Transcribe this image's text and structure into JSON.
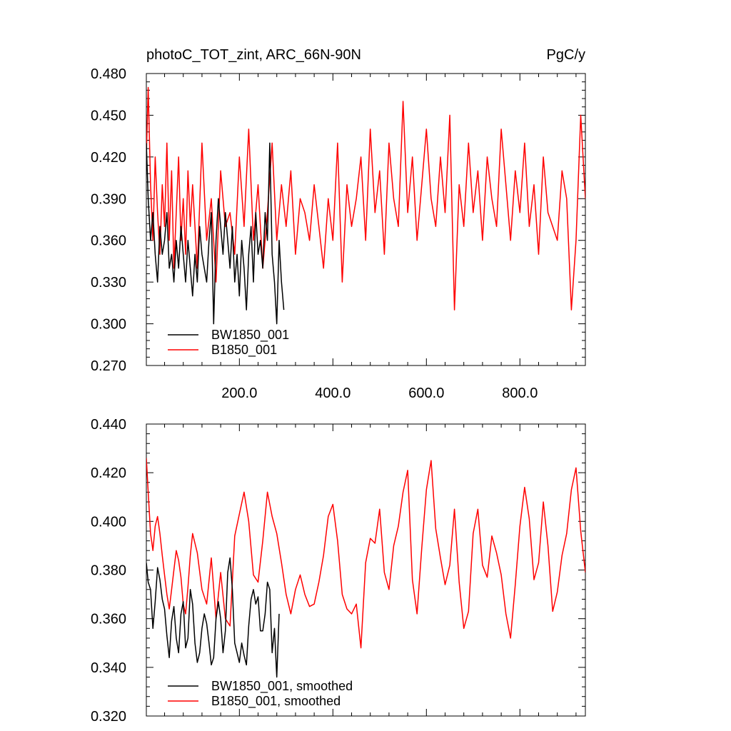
{
  "chart_data": [
    {
      "type": "line",
      "title": "photoC_TOT_zint, ARC_66N-90N",
      "units": "PgC/y",
      "xlabel": "",
      "ylabel": "",
      "xlim": [
        1,
        940
      ],
      "ylim": [
        0.27,
        0.48
      ],
      "xticks": [
        "200.0",
        "400.0",
        "600.0",
        "800.0"
      ],
      "yticks": [
        "0.270",
        "0.300",
        "0.330",
        "0.360",
        "0.390",
        "0.420",
        "0.450",
        "0.480"
      ],
      "legend_placement": "bottom-left",
      "series": [
        {
          "name": "BW1850_001",
          "color": "#000000",
          "x": [
            1,
            5,
            10,
            15,
            20,
            25,
            30,
            35,
            40,
            45,
            50,
            55,
            60,
            65,
            70,
            75,
            80,
            85,
            90,
            95,
            100,
            105,
            110,
            115,
            120,
            125,
            130,
            135,
            140,
            145,
            150,
            155,
            160,
            165,
            170,
            175,
            180,
            185,
            190,
            195,
            200,
            205,
            210,
            215,
            220,
            225,
            230,
            235,
            240,
            245,
            250,
            255,
            260,
            265,
            270,
            275,
            280,
            285,
            290,
            295
          ],
          "values": [
            0.43,
            0.39,
            0.36,
            0.38,
            0.35,
            0.33,
            0.37,
            0.35,
            0.36,
            0.38,
            0.34,
            0.35,
            0.33,
            0.36,
            0.34,
            0.37,
            0.35,
            0.33,
            0.36,
            0.34,
            0.32,
            0.35,
            0.33,
            0.37,
            0.35,
            0.34,
            0.33,
            0.36,
            0.38,
            0.3,
            0.36,
            0.39,
            0.37,
            0.35,
            0.38,
            0.36,
            0.34,
            0.37,
            0.33,
            0.35,
            0.32,
            0.36,
            0.34,
            0.31,
            0.35,
            0.37,
            0.33,
            0.38,
            0.35,
            0.36,
            0.34,
            0.38,
            0.36,
            0.43,
            0.35,
            0.33,
            0.3,
            0.36,
            0.33,
            0.31
          ]
        },
        {
          "name": "B1850_001",
          "color": "#ff0000",
          "x": [
            1,
            5,
            10,
            15,
            20,
            25,
            30,
            35,
            40,
            45,
            50,
            55,
            60,
            65,
            70,
            75,
            80,
            85,
            90,
            95,
            100,
            110,
            120,
            130,
            140,
            150,
            160,
            170,
            180,
            190,
            200,
            210,
            220,
            230,
            240,
            250,
            260,
            270,
            280,
            290,
            300,
            310,
            320,
            330,
            340,
            350,
            360,
            370,
            380,
            390,
            400,
            410,
            420,
            430,
            440,
            450,
            460,
            470,
            480,
            490,
            500,
            510,
            520,
            530,
            540,
            550,
            560,
            570,
            580,
            590,
            600,
            610,
            620,
            630,
            640,
            650,
            660,
            670,
            680,
            690,
            700,
            710,
            720,
            730,
            740,
            750,
            760,
            770,
            780,
            790,
            800,
            810,
            820,
            830,
            840,
            850,
            860,
            870,
            880,
            890,
            900,
            910,
            920,
            930,
            940
          ],
          "values": [
            0.42,
            0.47,
            0.4,
            0.36,
            0.42,
            0.38,
            0.35,
            0.4,
            0.37,
            0.43,
            0.36,
            0.41,
            0.34,
            0.38,
            0.42,
            0.36,
            0.39,
            0.35,
            0.41,
            0.37,
            0.4,
            0.34,
            0.43,
            0.36,
            0.39,
            0.33,
            0.41,
            0.37,
            0.38,
            0.35,
            0.42,
            0.37,
            0.44,
            0.36,
            0.4,
            0.34,
            0.38,
            0.43,
            0.36,
            0.4,
            0.37,
            0.41,
            0.35,
            0.39,
            0.38,
            0.36,
            0.4,
            0.37,
            0.34,
            0.39,
            0.36,
            0.43,
            0.33,
            0.4,
            0.37,
            0.39,
            0.42,
            0.36,
            0.44,
            0.38,
            0.41,
            0.35,
            0.43,
            0.39,
            0.37,
            0.46,
            0.38,
            0.42,
            0.36,
            0.4,
            0.44,
            0.39,
            0.37,
            0.42,
            0.38,
            0.45,
            0.31,
            0.4,
            0.37,
            0.43,
            0.38,
            0.41,
            0.36,
            0.42,
            0.39,
            0.37,
            0.44,
            0.4,
            0.36,
            0.41,
            0.38,
            0.43,
            0.37,
            0.4,
            0.35,
            0.42,
            0.38,
            0.37,
            0.36,
            0.41,
            0.39,
            0.31,
            0.36,
            0.45,
            0.39
          ]
        }
      ]
    },
    {
      "type": "line",
      "title": "",
      "xlabel": "",
      "ylabel": "",
      "xlim": [
        1,
        940
      ],
      "ylim": [
        0.32,
        0.44
      ],
      "yticks": [
        "0.320",
        "0.340",
        "0.360",
        "0.380",
        "0.400",
        "0.420",
        "0.440"
      ],
      "legend_placement": "bottom-left",
      "series": [
        {
          "name": "BW1850_001, smoothed",
          "color": "#000000",
          "x": [
            1,
            5,
            10,
            15,
            20,
            25,
            30,
            35,
            40,
            45,
            50,
            55,
            60,
            65,
            70,
            75,
            80,
            85,
            90,
            95,
            100,
            105,
            110,
            115,
            120,
            125,
            130,
            135,
            140,
            145,
            150,
            155,
            160,
            165,
            170,
            175,
            180,
            185,
            190,
            195,
            200,
            205,
            210,
            215,
            220,
            225,
            230,
            235,
            240,
            245,
            250,
            255,
            260,
            265,
            270,
            275,
            280,
            285
          ],
          "values": [
            0.383,
            0.375,
            0.372,
            0.356,
            0.367,
            0.381,
            0.376,
            0.368,
            0.364,
            0.353,
            0.344,
            0.359,
            0.365,
            0.352,
            0.346,
            0.362,
            0.367,
            0.348,
            0.352,
            0.372,
            0.366,
            0.35,
            0.342,
            0.346,
            0.356,
            0.362,
            0.358,
            0.35,
            0.341,
            0.344,
            0.36,
            0.367,
            0.36,
            0.346,
            0.355,
            0.379,
            0.385,
            0.372,
            0.35,
            0.346,
            0.342,
            0.35,
            0.345,
            0.341,
            0.357,
            0.368,
            0.372,
            0.366,
            0.369,
            0.355,
            0.355,
            0.362,
            0.375,
            0.372,
            0.346,
            0.356,
            0.336,
            0.362
          ]
        },
        {
          "name": "B1850_001, smoothed",
          "color": "#ff0000",
          "x": [
            1,
            5,
            10,
            15,
            20,
            25,
            30,
            35,
            40,
            45,
            50,
            55,
            60,
            65,
            70,
            75,
            80,
            85,
            90,
            95,
            100,
            110,
            120,
            130,
            140,
            150,
            160,
            170,
            180,
            190,
            200,
            210,
            220,
            230,
            240,
            250,
            260,
            270,
            280,
            290,
            300,
            310,
            320,
            330,
            340,
            350,
            360,
            370,
            380,
            390,
            400,
            410,
            420,
            430,
            440,
            450,
            460,
            470,
            480,
            490,
            500,
            510,
            520,
            530,
            540,
            550,
            560,
            570,
            580,
            590,
            600,
            610,
            620,
            630,
            640,
            650,
            660,
            670,
            680,
            690,
            700,
            710,
            720,
            730,
            740,
            750,
            760,
            770,
            780,
            790,
            800,
            810,
            820,
            830,
            840,
            850,
            860,
            870,
            880,
            890,
            900,
            910,
            920,
            930,
            940
          ],
          "values": [
            0.426,
            0.412,
            0.395,
            0.388,
            0.398,
            0.402,
            0.395,
            0.386,
            0.378,
            0.37,
            0.364,
            0.372,
            0.38,
            0.388,
            0.384,
            0.377,
            0.366,
            0.362,
            0.373,
            0.386,
            0.395,
            0.387,
            0.372,
            0.366,
            0.385,
            0.36,
            0.379,
            0.36,
            0.357,
            0.394,
            0.403,
            0.412,
            0.4,
            0.378,
            0.375,
            0.392,
            0.412,
            0.402,
            0.395,
            0.383,
            0.37,
            0.362,
            0.372,
            0.378,
            0.37,
            0.365,
            0.366,
            0.375,
            0.386,
            0.402,
            0.407,
            0.392,
            0.37,
            0.364,
            0.362,
            0.366,
            0.348,
            0.383,
            0.393,
            0.391,
            0.405,
            0.379,
            0.372,
            0.39,
            0.398,
            0.412,
            0.421,
            0.376,
            0.362,
            0.389,
            0.413,
            0.425,
            0.397,
            0.385,
            0.374,
            0.382,
            0.405,
            0.375,
            0.356,
            0.363,
            0.395,
            0.405,
            0.382,
            0.377,
            0.394,
            0.387,
            0.378,
            0.362,
            0.352,
            0.374,
            0.398,
            0.414,
            0.401,
            0.376,
            0.383,
            0.408,
            0.39,
            0.363,
            0.371,
            0.386,
            0.395,
            0.413,
            0.422,
            0.396,
            0.379
          ]
        }
      ]
    }
  ]
}
